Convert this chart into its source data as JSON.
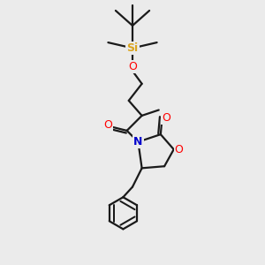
{
  "bg_color": "#ebebeb",
  "bond_color": "#1a1a1a",
  "bond_width": 1.6,
  "Si_color": "#DAA520",
  "O_color": "#FF0000",
  "N_color": "#0000CC",
  "figsize": [
    3.0,
    3.0
  ],
  "dpi": 100,
  "xlim": [
    0.0,
    10.0
  ],
  "ylim": [
    0.0,
    14.0
  ]
}
